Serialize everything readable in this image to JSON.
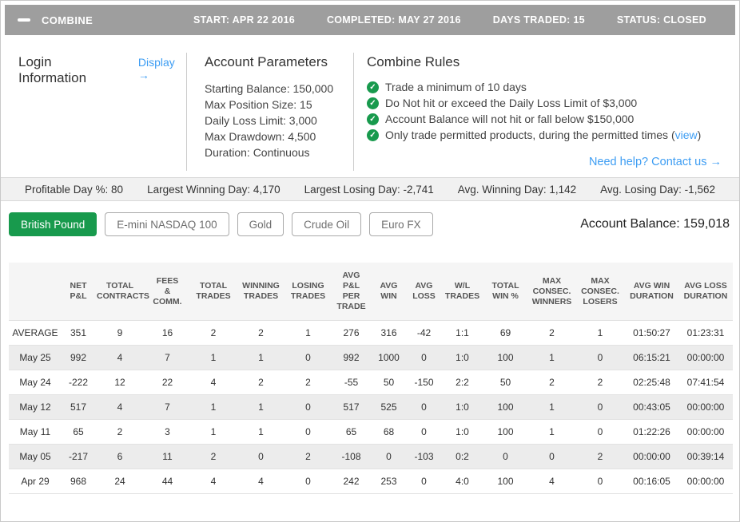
{
  "top_bar": {
    "title": "COMBINE",
    "items": [
      "START: APR 22 2016",
      "COMPLETED: MAY 27 2016",
      "DAYS TRADED: 15",
      "STATUS: CLOSED"
    ]
  },
  "login": {
    "title": "Login Information",
    "display_link": "Display →"
  },
  "account_parameters": {
    "title": "Account Parameters",
    "items": [
      "Starting Balance: 150,000",
      "Max Position Size: 15",
      "Daily Loss Limit: 3,000",
      "Max Drawdown: 4,500",
      "Duration: Continuous"
    ]
  },
  "combine_rules": {
    "title": "Combine Rules",
    "rules": [
      {
        "text": "Trade a minimum of 10 days"
      },
      {
        "text": "Do Not hit or exceed the Daily Loss Limit of $3,000"
      },
      {
        "text": "Account Balance will not hit or fall below $150,000"
      },
      {
        "text": "Only trade permitted products, during the permitted times",
        "link": "view"
      }
    ],
    "help_link": "Need help? Contact us →"
  },
  "summary_stats": [
    "Profitable Day %: 80",
    "Largest Winning Day: 4,170",
    "Largest Losing Day: -2,741",
    "Avg. Winning Day: 1,142",
    "Avg. Losing Day: -1,562"
  ],
  "instruments": {
    "active": "British Pound",
    "buttons": [
      "British Pound",
      "E-mini NASDAQ 100",
      "Gold",
      "Crude Oil",
      "Euro FX"
    ]
  },
  "account_balance": "Account Balance: 159,018",
  "table": {
    "columns": [
      "",
      "NET\nP&L",
      "TOTAL\nCONTRACTS",
      "FEES\n&\nCOMM.",
      "TOTAL\nTRADES",
      "WINNING\nTRADES",
      "LOSING\nTRADES",
      "AVG\nP&L\nPER\nTRADE",
      "AVG\nWIN",
      "AVG\nLOSS",
      "W/L\nTRADES",
      "TOTAL\nWIN %",
      "MAX\nCONSEC.\nWINNERS",
      "MAX\nCONSEC.\nLOSERS",
      "AVG WIN\nDURATION",
      "AVG LOSS\nDURATION"
    ],
    "rows": [
      {
        "label": "AVERAGE",
        "values": [
          "351",
          "9",
          "16",
          "2",
          "2",
          "1",
          "276",
          "316",
          "-42",
          "1:1",
          "69",
          "2",
          "1",
          "01:50:27",
          "01:23:31"
        ]
      },
      {
        "label": "May 25",
        "values": [
          "992",
          "4",
          "7",
          "1",
          "1",
          "0",
          "992",
          "1000",
          "0",
          "1:0",
          "100",
          "1",
          "0",
          "06:15:21",
          "00:00:00"
        ]
      },
      {
        "label": "May 24",
        "values": [
          "-222",
          "12",
          "22",
          "4",
          "2",
          "2",
          "-55",
          "50",
          "-150",
          "2:2",
          "50",
          "2",
          "2",
          "02:25:48",
          "07:41:54"
        ]
      },
      {
        "label": "May 12",
        "values": [
          "517",
          "4",
          "7",
          "1",
          "1",
          "0",
          "517",
          "525",
          "0",
          "1:0",
          "100",
          "1",
          "0",
          "00:43:05",
          "00:00:00"
        ]
      },
      {
        "label": "May 11",
        "values": [
          "65",
          "2",
          "3",
          "1",
          "1",
          "0",
          "65",
          "68",
          "0",
          "1:0",
          "100",
          "1",
          "0",
          "01:22:26",
          "00:00:00"
        ]
      },
      {
        "label": "May 05",
        "values": [
          "-217",
          "6",
          "11",
          "2",
          "0",
          "2",
          "-108",
          "0",
          "-103",
          "0:2",
          "0",
          "0",
          "2",
          "00:00:00",
          "00:39:14"
        ]
      },
      {
        "label": "Apr 29",
        "values": [
          "968",
          "24",
          "44",
          "4",
          "4",
          "0",
          "242",
          "253",
          "0",
          "4:0",
          "100",
          "4",
          "0",
          "00:16:05",
          "00:00:00"
        ]
      }
    ]
  },
  "colors": {
    "accent_green": "#189a4d",
    "link_blue": "#3d9df3",
    "top_bar_gray": "#9e9e9e"
  }
}
